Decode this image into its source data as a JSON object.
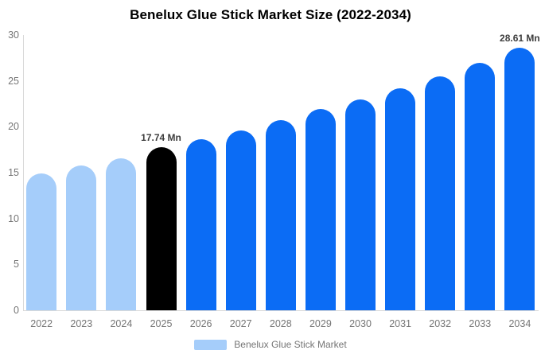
{
  "title": "Benelux Glue Stick Market Size (2022-2034)",
  "chart_data": {
    "type": "bar",
    "title": "Benelux Glue Stick Market Size (2022-2034)",
    "xlabel": "",
    "ylabel": "",
    "categories": [
      "2022",
      "2023",
      "2024",
      "2025",
      "2026",
      "2027",
      "2028",
      "2029",
      "2030",
      "2031",
      "2032",
      "2033",
      "2034"
    ],
    "values": [
      14.9,
      15.8,
      16.6,
      17.74,
      18.6,
      19.6,
      20.7,
      21.9,
      23.0,
      24.2,
      25.5,
      27.0,
      28.61
    ],
    "bar_colors": [
      "#a5cdfa",
      "#a5cdfa",
      "#a5cdfa",
      "#000000",
      "#0b6cf5",
      "#0b6cf5",
      "#0b6cf5",
      "#0b6cf5",
      "#0b6cf5",
      "#0b6cf5",
      "#0b6cf5",
      "#0b6cf5",
      "#0b6cf5"
    ],
    "annotations": [
      {
        "category": "2025",
        "text": "17.74 Mn"
      },
      {
        "category": "2034",
        "text": "28.61 Mn"
      }
    ],
    "ylim": [
      0,
      30
    ],
    "yticks": [
      0,
      5,
      10,
      15,
      20,
      25,
      30
    ],
    "grid": false,
    "legend_position": "bottom",
    "legend": [
      {
        "label": "Benelux Glue Stick Market",
        "color": "#a5cdfa"
      }
    ]
  },
  "colors": {
    "background": "#ffffff",
    "axis_line": "#d9d9d9",
    "tick_text": "#757575",
    "title_text": "#000000",
    "value_label_text": "#3d3d3d",
    "series_light_blue": "#a5cdfa",
    "series_blue": "#0b6cf5",
    "series_black": "#000000"
  }
}
